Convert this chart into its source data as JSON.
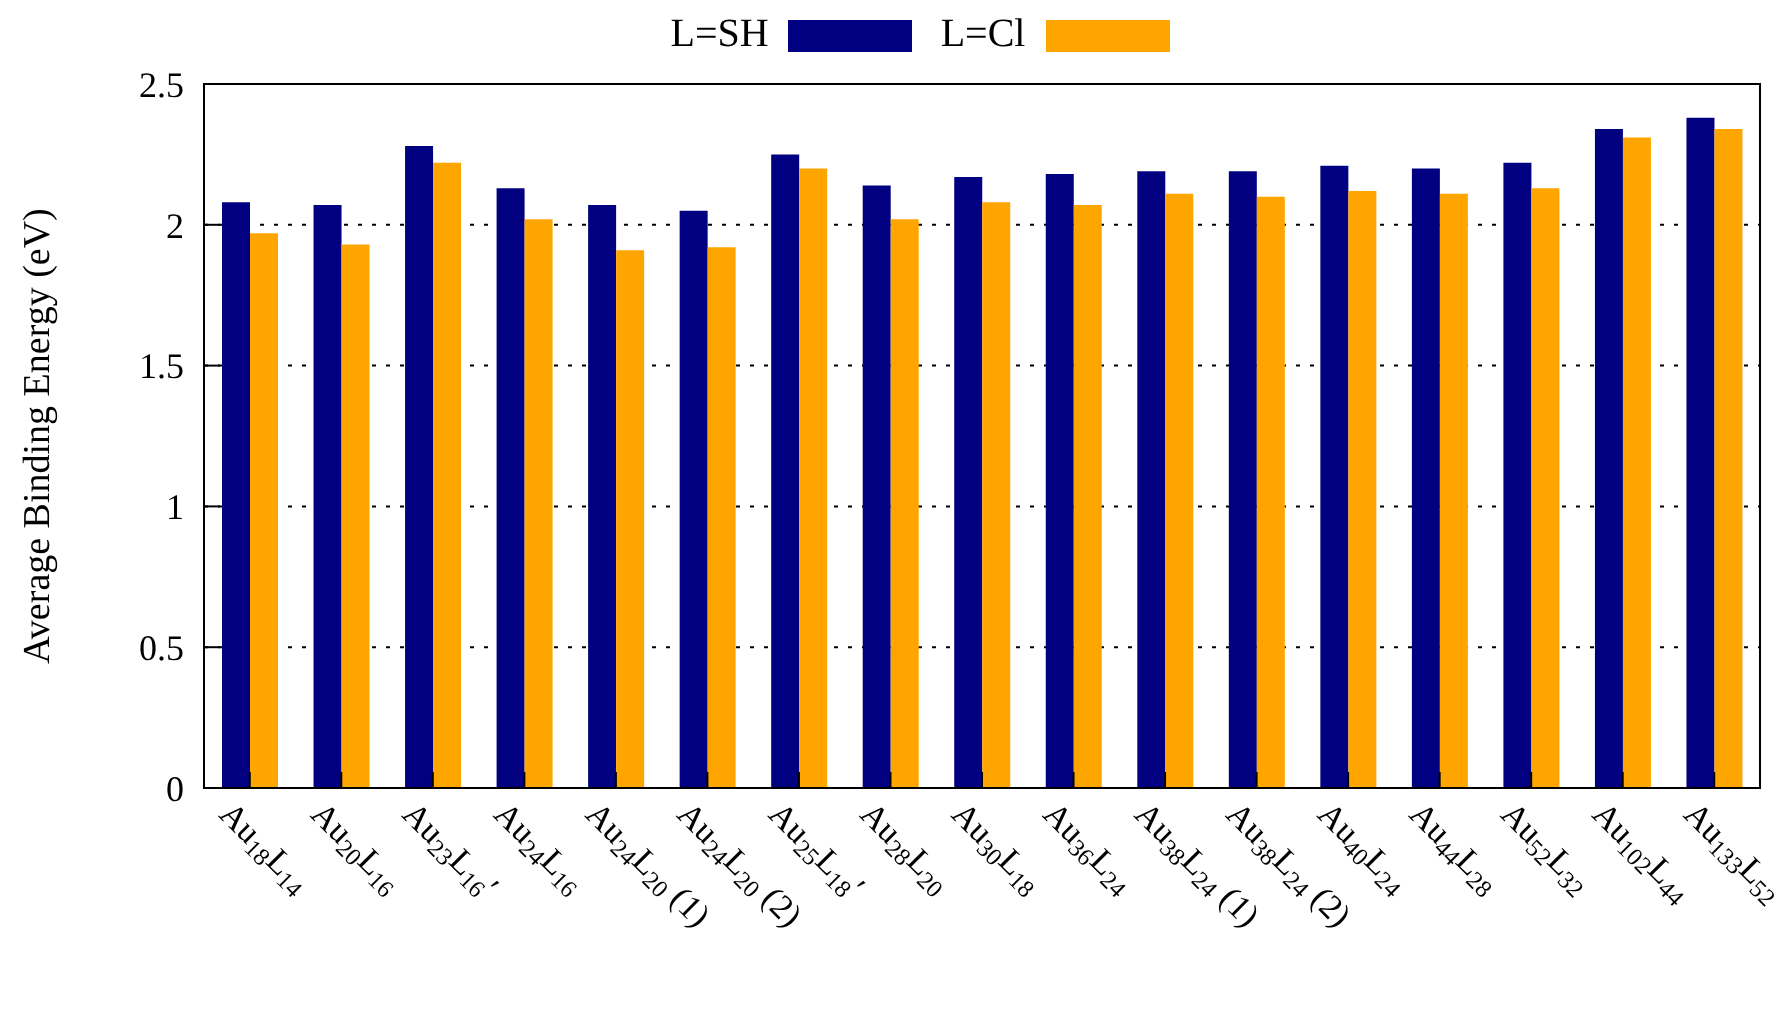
{
  "chart_data": {
    "type": "bar",
    "ylabel": "Average Binding Energy (eV)",
    "categories": [
      "Au$_{18}$L$_{14}$",
      "Au$_{20}$L$_{16}$",
      "Au$_{23}$L$_{16}$′",
      "Au$_{24}$L$_{16}$",
      "Au$_{24}$L$_{20}$ (1)",
      "Au$_{24}$L$_{20}$ (2)",
      "Au$_{25}$L$_{18}$′",
      "Au$_{28}$L$_{20}$",
      "Au$_{30}$L$_{18}$",
      "Au$_{36}$L$_{24}$",
      "Au$_{38}$L$_{24}$ (1)",
      "Au$_{38}$L$_{24}$ (2)",
      "Au$_{40}$L$_{24}$",
      "Au$_{44}$L$_{28}$",
      "Au$_{52}$L$_{32}$",
      "Au$_{102}$L$_{44}$",
      "Au$_{133}$L$_{52}$"
    ],
    "series": [
      {
        "name": "L=SH",
        "color": "#000080",
        "values": [
          2.08,
          2.07,
          2.28,
          2.13,
          2.07,
          2.05,
          2.25,
          2.14,
          2.17,
          2.18,
          2.19,
          2.19,
          2.21,
          2.2,
          2.22,
          2.34,
          2.38
        ]
      },
      {
        "name": "L=Cl",
        "color": "#ffa500",
        "values": [
          1.97,
          1.93,
          2.22,
          2.02,
          1.91,
          1.92,
          2.2,
          2.02,
          2.08,
          2.07,
          2.11,
          2.1,
          2.12,
          2.11,
          2.13,
          2.31,
          2.34
        ]
      }
    ],
    "ylim": [
      0,
      2.5
    ],
    "yticks": [
      0,
      0.5,
      1,
      1.5,
      2,
      2.5
    ],
    "grid": "y",
    "legend": "top"
  }
}
